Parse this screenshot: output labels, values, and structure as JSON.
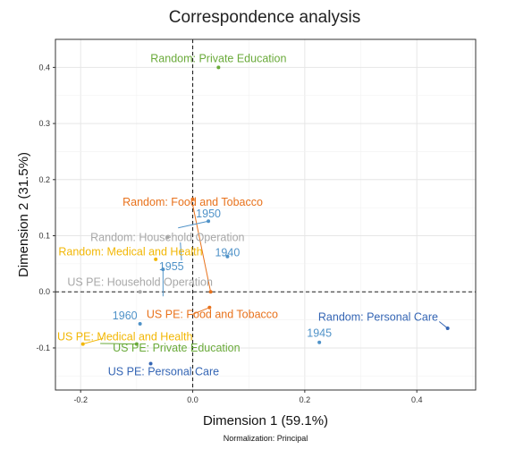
{
  "chart_data": {
    "type": "scatter",
    "title": "Correspondence analysis",
    "xlabel": "Dimension 1 (59.1%)",
    "ylabel": "Dimension 2 (31.5%)",
    "caption": "Normalization: Principal",
    "xlim": [
      -0.245,
      0.505
    ],
    "ylim": [
      -0.175,
      0.45
    ],
    "xticks": [
      {
        "value": -0.2,
        "label": "-0.2"
      },
      {
        "value": 0.0,
        "label": "0.0"
      },
      {
        "value": 0.2,
        "label": "0.2"
      },
      {
        "value": 0.4,
        "label": "0.4"
      }
    ],
    "yticks": [
      {
        "value": -0.1,
        "label": "-0.1"
      },
      {
        "value": 0.0,
        "label": "0.0"
      },
      {
        "value": 0.1,
        "label": "0.1"
      },
      {
        "value": 0.2,
        "label": "0.2"
      },
      {
        "value": 0.3,
        "label": "0.3"
      },
      {
        "value": 0.4,
        "label": "0.4"
      }
    ],
    "grid": true,
    "reference_lines": {
      "x": 0,
      "y": 0,
      "style": "dashed"
    },
    "colors": {
      "private_education": "#6aaa3a",
      "food_tobacco": "#e8721c",
      "years": "#4f92c8",
      "household": "#a8a8a8",
      "medical": "#f2b705",
      "personal_care": "#3465b4"
    },
    "points": [
      {
        "id": "random-private-education",
        "label": "Random: Private Education",
        "x": 0.046,
        "y": 0.4,
        "lx": 0.046,
        "ly": 0.416,
        "color": "#6aaa3a"
      },
      {
        "id": "random-food-tobacco",
        "label": "Random: Food and Tobacco",
        "x": 0.0,
        "y": 0.165,
        "lx": 0.0,
        "ly": 0.16,
        "color": "#e8721c"
      },
      {
        "id": "year-1950",
        "label": "1950",
        "x": 0.028,
        "y": 0.126,
        "lx": 0.028,
        "ly": 0.139,
        "color": "#4f92c8"
      },
      {
        "id": "random-household-operation",
        "label": "Random: Household Operation",
        "x": -0.045,
        "y": 0.097,
        "lx": -0.045,
        "ly": 0.097,
        "color": "#a8a8a8"
      },
      {
        "id": "year-1940",
        "label": "1940",
        "x": 0.062,
        "y": 0.063,
        "lx": 0.062,
        "ly": 0.07,
        "color": "#4f92c8"
      },
      {
        "id": "random-medical-health",
        "label": "Random: Medical and Health",
        "x": -0.066,
        "y": 0.058,
        "lx": -0.111,
        "ly": 0.071,
        "color": "#f2b705"
      },
      {
        "id": "year-1955",
        "label": "1955",
        "x": -0.053,
        "y": 0.04,
        "lx": -0.038,
        "ly": 0.045,
        "color": "#4f92c8"
      },
      {
        "id": "us-pe-household-operation",
        "label": "US PE: Household Operation",
        "x": -0.094,
        "y": 0.0,
        "lx": -0.094,
        "ly": 0.017,
        "color": "#a8a8a8"
      },
      {
        "id": "food-point",
        "label": "",
        "x": 0.032,
        "y": 0.0,
        "lx": 0.032,
        "ly": 0.0,
        "color": "#e8721c"
      },
      {
        "id": "year-1960",
        "label": "1960",
        "x": -0.094,
        "y": -0.057,
        "lx": -0.121,
        "ly": -0.043,
        "color": "#4f92c8"
      },
      {
        "id": "us-pe-food-tobacco",
        "label": "US PE: Food and Tobacco",
        "x": 0.03,
        "y": -0.028,
        "lx": 0.035,
        "ly": -0.04,
        "color": "#e8721c"
      },
      {
        "id": "random-personal-care",
        "label": "Random: Personal Care",
        "x": 0.455,
        "y": -0.065,
        "lx": 0.331,
        "ly": -0.045,
        "color": "#3465b4"
      },
      {
        "id": "year-1945",
        "label": "1945",
        "x": 0.226,
        "y": -0.09,
        "lx": 0.226,
        "ly": -0.074,
        "color": "#4f92c8"
      },
      {
        "id": "us-pe-medical-health",
        "label": "US PE: Medical and Health",
        "x": -0.196,
        "y": -0.093,
        "lx": -0.121,
        "ly": -0.08,
        "color": "#f2b705"
      },
      {
        "id": "us-pe-private-education",
        "label": "US PE: Private Education",
        "x": -0.1,
        "y": -0.093,
        "lx": -0.029,
        "ly": -0.1,
        "color": "#6aaa3a"
      },
      {
        "id": "us-pe-personal-care",
        "label": "US PE: Personal Care",
        "x": -0.075,
        "y": -0.128,
        "lx": -0.052,
        "ly": -0.142,
        "color": "#3465b4"
      }
    ],
    "leader_lines": [
      {
        "x1": 0.0,
        "y1": 0.155,
        "x2": 0.032,
        "y2": 0.0,
        "color": "#e8721c"
      },
      {
        "x1": -0.026,
        "y1": 0.114,
        "x2": 0.028,
        "y2": 0.126,
        "color": "#4f92c8"
      },
      {
        "x1": -0.053,
        "y1": 0.04,
        "x2": -0.053,
        "y2": -0.008,
        "color": "#4f92c8"
      },
      {
        "x1": -0.02,
        "y1": 0.056,
        "x2": -0.022,
        "y2": 0.088,
        "color": "#4f92c8"
      },
      {
        "x1": 0.03,
        "y1": -0.028,
        "x2": 0.0,
        "y2": -0.04,
        "color": "#e8721c"
      },
      {
        "x1": 0.455,
        "y1": -0.065,
        "x2": 0.44,
        "y2": -0.053,
        "color": "#3465b4"
      },
      {
        "x1": -0.196,
        "y1": -0.093,
        "x2": -0.16,
        "y2": -0.083,
        "color": "#f2b705"
      },
      {
        "x1": -0.1,
        "y1": -0.093,
        "x2": -0.165,
        "y2": -0.092,
        "color": "#6aaa3a"
      }
    ]
  }
}
